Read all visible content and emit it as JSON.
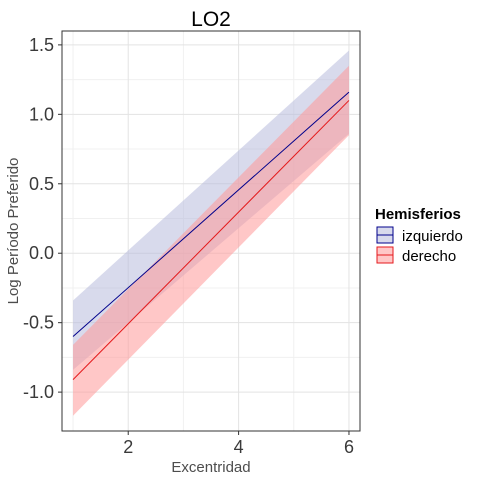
{
  "chart_data": {
    "type": "line",
    "title": "LO2",
    "xlabel": "Excentridad",
    "ylabel": "Log Período Preferido",
    "xlim": [
      0.8,
      6.2
    ],
    "ylim": [
      -1.28,
      1.6
    ],
    "x_ticks": [
      2,
      4,
      6
    ],
    "x_tick_labels": [
      "2",
      "4",
      "6"
    ],
    "y_ticks": [
      -1.0,
      -0.5,
      0.0,
      0.5,
      1.0,
      1.5
    ],
    "y_tick_labels": [
      "-1.0",
      "-0.5",
      "0.0",
      "0.5",
      "1.0",
      "1.5"
    ],
    "grid": true,
    "legend": {
      "title": "Hemisferios",
      "position": "right"
    },
    "series": [
      {
        "name": "izquierdo",
        "line_color": "#00008B",
        "fill_color": "#B8BCDD",
        "x": [
          1,
          6
        ],
        "y": [
          -0.6,
          1.16
        ],
        "lower": [
          -0.84,
          0.86
        ],
        "upper": [
          -0.34,
          1.46
        ]
      },
      {
        "name": "derecho",
        "line_color": "#E41A1C",
        "fill_color": "#FF9999",
        "x": [
          1,
          6
        ],
        "y": [
          -0.91,
          1.1
        ],
        "lower": [
          -1.17,
          0.85
        ],
        "upper": [
          -0.66,
          1.35
        ]
      }
    ]
  }
}
